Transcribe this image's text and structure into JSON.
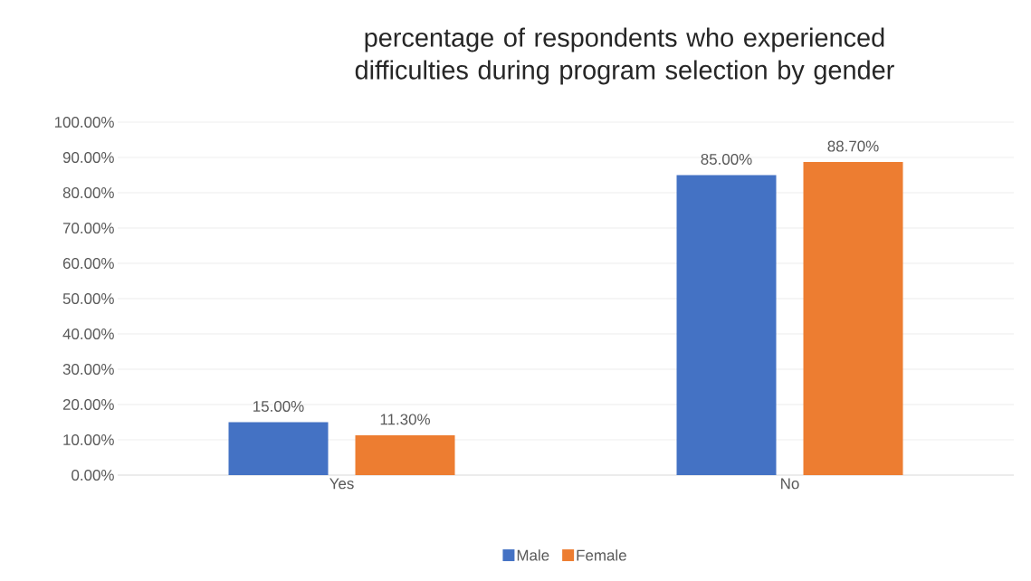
{
  "chart_data": {
    "type": "bar",
    "title": "percentage of respondents who experienced difficulties during program  selection  by gender",
    "categories": [
      "Yes",
      "No"
    ],
    "series": [
      {
        "name": "Male",
        "color": "#4472c4",
        "values": [
          15,
          85
        ],
        "value_labels": [
          "15.00%",
          "85.00%"
        ]
      },
      {
        "name": "Female",
        "color": "#ed7d31",
        "values": [
          11.3,
          88.7
        ],
        "value_labels": [
          "11.30%",
          "88.70%"
        ]
      }
    ],
    "ylim": [
      0,
      100
    ],
    "yticks": [
      {
        "value": 0,
        "label": "0.00%"
      },
      {
        "value": 10,
        "label": "10.00%"
      },
      {
        "value": 20,
        "label": "20.00%"
      },
      {
        "value": 30,
        "label": "30.00%"
      },
      {
        "value": 40,
        "label": "40.00%"
      },
      {
        "value": 50,
        "label": "50.00%"
      },
      {
        "value": 60,
        "label": "60.00%"
      },
      {
        "value": 70,
        "label": "70.00%"
      },
      {
        "value": 80,
        "label": "80.00%"
      },
      {
        "value": 90,
        "label": "90.00%"
      },
      {
        "value": 100,
        "label": "100.00%"
      }
    ],
    "grid": "y",
    "legend": "bottom"
  }
}
